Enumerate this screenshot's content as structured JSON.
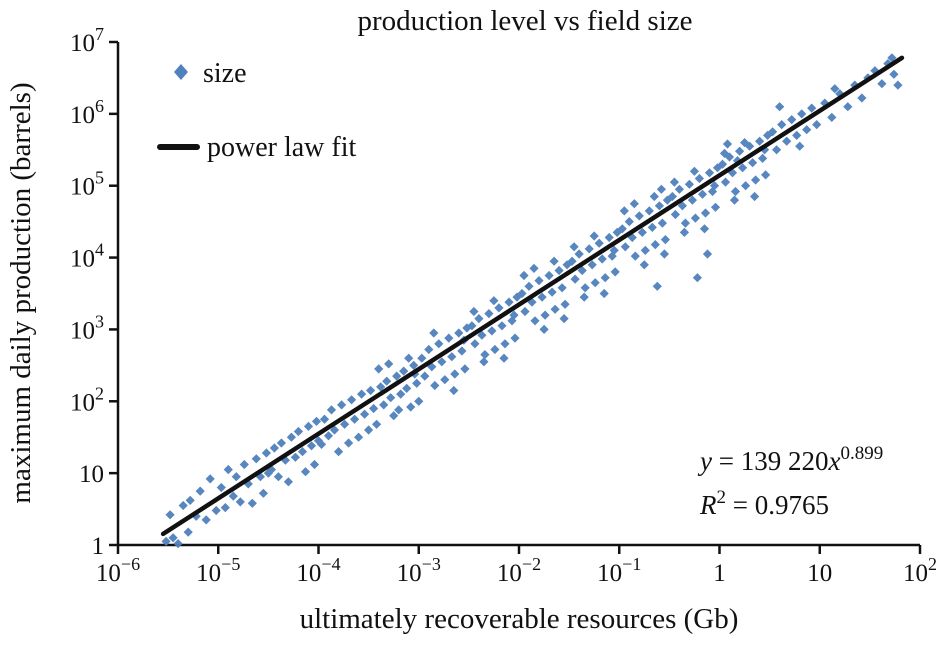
{
  "figure": {
    "title": "production level vs field size",
    "x_axis_label": "ultimately recoverable resources (Gb)",
    "y_axis_label": "maximum daily production (barrels)",
    "legend": [
      {
        "label": "size",
        "marker": "diamond",
        "color": "#4f81bd"
      },
      {
        "label": "power law fit",
        "marker": "line",
        "color": "#111111"
      }
    ],
    "annotation": {
      "equation": {
        "y": "y",
        "mid": " = 139 220",
        "x": "x",
        "exp": "0.899"
      },
      "r2": {
        "r": "R",
        "sup": "2",
        "rest": " = 0.9765"
      }
    }
  },
  "chart_data": {
    "type": "scatter",
    "title": "production level vs field size",
    "xlabel": "ultimately recoverable resources (Gb)",
    "ylabel": "maximum daily production (barrels)",
    "x_scale": "log",
    "y_scale": "log",
    "x_range_exp": [
      -6,
      2
    ],
    "y_range_exp": [
      0,
      7
    ],
    "grid": false,
    "legend_position": "top-left",
    "x_ticks": [
      {
        "v": -6,
        "base": "10",
        "sup": "−6"
      },
      {
        "v": -5,
        "base": "10",
        "sup": "−5"
      },
      {
        "v": -4,
        "base": "10",
        "sup": "−4"
      },
      {
        "v": -3,
        "base": "10",
        "sup": "−3"
      },
      {
        "v": -2,
        "base": "10",
        "sup": "−2"
      },
      {
        "v": -1,
        "base": "10",
        "sup": "−1"
      },
      {
        "v": 0,
        "base": "1",
        "sup": ""
      },
      {
        "v": 1,
        "base": "10",
        "sup": ""
      },
      {
        "v": 2,
        "base": "10",
        "sup": "2"
      }
    ],
    "y_ticks": [
      {
        "v": 0,
        "base": "1",
        "sup": ""
      },
      {
        "v": 1,
        "base": "10",
        "sup": ""
      },
      {
        "v": 2,
        "base": "10",
        "sup": "2"
      },
      {
        "v": 3,
        "base": "10",
        "sup": "3"
      },
      {
        "v": 4,
        "base": "10",
        "sup": "4"
      },
      {
        "v": 5,
        "base": "10",
        "sup": "5"
      },
      {
        "v": 6,
        "base": "10",
        "sup": "6"
      },
      {
        "v": 7,
        "base": "10",
        "sup": "7"
      }
    ],
    "fit": {
      "name": "power law fit",
      "model": "y = a * x^b",
      "coefficient": 139220,
      "exponent": 0.899,
      "r_squared": 0.9765,
      "color": "#111111",
      "x_log10_range": [
        -5.55,
        1.82
      ]
    },
    "series": [
      {
        "name": "size",
        "marker": "diamond",
        "color": "#4f81bd",
        "points_log10": [
          [
            -5.52,
            0.05
          ],
          [
            -5.48,
            0.42
          ],
          [
            -5.45,
            0.1
          ],
          [
            -5.4,
            0.02
          ],
          [
            -5.35,
            0.55
          ],
          [
            -5.3,
            0.18
          ],
          [
            -5.28,
            0.62
          ],
          [
            -5.22,
            0.4
          ],
          [
            -5.18,
            0.75
          ],
          [
            -5.12,
            0.35
          ],
          [
            -5.08,
            0.92
          ],
          [
            -5.02,
            0.48
          ],
          [
            -4.97,
            0.8
          ],
          [
            -4.93,
            0.52
          ],
          [
            -4.9,
            1.05
          ],
          [
            -4.85,
            0.68
          ],
          [
            -4.82,
            0.95
          ],
          [
            -4.78,
            0.6
          ],
          [
            -4.74,
            1.12
          ],
          [
            -4.7,
            0.85
          ],
          [
            -4.66,
            0.58
          ],
          [
            -4.62,
            1.2
          ],
          [
            -4.58,
            0.95
          ],
          [
            -4.55,
            0.72
          ],
          [
            -4.52,
            1.28
          ],
          [
            -4.5,
            1.0
          ],
          [
            -4.47,
            1.05
          ],
          [
            -4.44,
            1.35
          ],
          [
            -4.4,
            0.95
          ],
          [
            -4.37,
            1.42
          ],
          [
            -4.33,
            1.18
          ],
          [
            -4.3,
            0.88
          ],
          [
            -4.27,
            1.5
          ],
          [
            -4.23,
            1.22
          ],
          [
            -4.2,
            1.58
          ],
          [
            -4.16,
            1.3
          ],
          [
            -4.13,
            1.02
          ],
          [
            -4.1,
            1.65
          ],
          [
            -4.07,
            1.38
          ],
          [
            -4.04,
            1.12
          ],
          [
            -4.02,
            1.72
          ],
          [
            -4.0,
            1.45
          ],
          [
            -3.97,
            1.4
          ],
          [
            -3.94,
            1.75
          ],
          [
            -3.9,
            1.52
          ],
          [
            -3.87,
            1.88
          ],
          [
            -3.84,
            1.6
          ],
          [
            -3.8,
            1.3
          ],
          [
            -3.77,
            1.95
          ],
          [
            -3.74,
            1.68
          ],
          [
            -3.7,
            1.42
          ],
          [
            -3.67,
            2.02
          ],
          [
            -3.64,
            1.75
          ],
          [
            -3.6,
            1.5
          ],
          [
            -3.57,
            2.1
          ],
          [
            -3.54,
            1.82
          ],
          [
            -3.5,
            1.6
          ],
          [
            -3.48,
            2.15
          ],
          [
            -3.45,
            1.9
          ],
          [
            -3.42,
            1.68
          ],
          [
            -3.4,
            2.45
          ],
          [
            -3.38,
            2.2
          ],
          [
            -3.35,
            1.95
          ],
          [
            -3.32,
            2.28
          ],
          [
            -3.3,
            2.52
          ],
          [
            -3.28,
            2.05
          ],
          [
            -3.25,
            1.8
          ],
          [
            -3.22,
            2.35
          ],
          [
            -3.2,
            1.88
          ],
          [
            -3.18,
            2.1
          ],
          [
            -3.15,
            2.42
          ],
          [
            -3.12,
            2.18
          ],
          [
            -3.1,
            2.6
          ],
          [
            -3.08,
            1.92
          ],
          [
            -3.05,
            2.5
          ],
          [
            -3.04,
            2.38
          ],
          [
            -3.02,
            2.25
          ],
          [
            -3.0,
            2.0
          ],
          [
            -2.97,
            2.6
          ],
          [
            -2.94,
            2.35
          ],
          [
            -2.9,
            2.72
          ],
          [
            -2.87,
            2.48
          ],
          [
            -2.85,
            2.95
          ],
          [
            -2.84,
            2.22
          ],
          [
            -2.8,
            2.8
          ],
          [
            -2.77,
            2.55
          ],
          [
            -2.74,
            2.3
          ],
          [
            -2.7,
            2.88
          ],
          [
            -2.67,
            2.62
          ],
          [
            -2.65,
            2.15
          ],
          [
            -2.64,
            2.38
          ],
          [
            -2.6,
            2.95
          ],
          [
            -2.57,
            2.7
          ],
          [
            -2.55,
            2.85
          ],
          [
            -2.54,
            2.45
          ],
          [
            -2.52,
            3.02
          ],
          [
            -2.47,
            3.05
          ],
          [
            -2.45,
            3.25
          ],
          [
            -2.44,
            2.8
          ],
          [
            -2.4,
            3.15
          ],
          [
            -2.37,
            2.92
          ],
          [
            -2.35,
            2.55
          ],
          [
            -2.34,
            2.65
          ],
          [
            -2.3,
            3.22
          ],
          [
            -2.27,
            2.98
          ],
          [
            -2.25,
            3.4
          ],
          [
            -2.24,
            2.72
          ],
          [
            -2.2,
            3.3
          ],
          [
            -2.17,
            3.05
          ],
          [
            -2.15,
            2.6
          ],
          [
            -2.14,
            2.8
          ],
          [
            -2.1,
            3.38
          ],
          [
            -2.07,
            3.12
          ],
          [
            -2.05,
            3.2
          ],
          [
            -2.04,
            2.88
          ],
          [
            -2.02,
            3.45
          ],
          [
            -1.97,
            3.5
          ],
          [
            -1.95,
            3.75
          ],
          [
            -1.94,
            3.25
          ],
          [
            -1.9,
            3.6
          ],
          [
            -1.87,
            3.38
          ],
          [
            -1.85,
            3.85
          ],
          [
            -1.84,
            3.12
          ],
          [
            -1.8,
            3.68
          ],
          [
            -1.77,
            3.45
          ],
          [
            -1.75,
            3.0
          ],
          [
            -1.74,
            3.2
          ],
          [
            -1.7,
            3.75
          ],
          [
            -1.67,
            3.52
          ],
          [
            -1.65,
            3.95
          ],
          [
            -1.64,
            3.28
          ],
          [
            -1.6,
            3.82
          ],
          [
            -1.57,
            3.58
          ],
          [
            -1.55,
            3.15
          ],
          [
            -1.54,
            3.35
          ],
          [
            -1.52,
            3.9
          ],
          [
            -1.47,
            3.95
          ],
          [
            -1.45,
            4.15
          ],
          [
            -1.44,
            3.7
          ],
          [
            -1.4,
            4.05
          ],
          [
            -1.37,
            3.82
          ],
          [
            -1.35,
            3.45
          ],
          [
            -1.34,
            3.58
          ],
          [
            -1.3,
            4.12
          ],
          [
            -1.27,
            3.9
          ],
          [
            -1.25,
            4.3
          ],
          [
            -1.24,
            3.65
          ],
          [
            -1.2,
            4.2
          ],
          [
            -1.17,
            3.98
          ],
          [
            -1.15,
            3.5
          ],
          [
            -1.14,
            3.72
          ],
          [
            -1.1,
            4.28
          ],
          [
            -1.07,
            4.02
          ],
          [
            -1.05,
            4.1
          ],
          [
            -1.04,
            3.8
          ],
          [
            -1.02,
            4.35
          ],
          [
            -0.97,
            4.4
          ],
          [
            -0.95,
            4.65
          ],
          [
            -0.94,
            4.15
          ],
          [
            -0.9,
            4.5
          ],
          [
            -0.87,
            4.28
          ],
          [
            -0.85,
            4.75
          ],
          [
            -0.84,
            4.02
          ],
          [
            -0.8,
            4.58
          ],
          [
            -0.77,
            4.35
          ],
          [
            -0.75,
            3.9
          ],
          [
            -0.74,
            4.1
          ],
          [
            -0.7,
            4.65
          ],
          [
            -0.67,
            4.42
          ],
          [
            -0.65,
            4.85
          ],
          [
            -0.64,
            4.18
          ],
          [
            -0.62,
            3.6
          ],
          [
            -0.6,
            4.72
          ],
          [
            -0.58,
            4.95
          ],
          [
            -0.57,
            4.48
          ],
          [
            -0.55,
            4.05
          ],
          [
            -0.54,
            4.25
          ],
          [
            -0.52,
            4.8
          ],
          [
            -0.47,
            4.85
          ],
          [
            -0.45,
            5.05
          ],
          [
            -0.44,
            4.6
          ],
          [
            -0.4,
            4.95
          ],
          [
            -0.37,
            4.72
          ],
          [
            -0.35,
            4.35
          ],
          [
            -0.34,
            4.48
          ],
          [
            -0.3,
            5.02
          ],
          [
            -0.27,
            4.8
          ],
          [
            -0.25,
            5.2
          ],
          [
            -0.24,
            4.55
          ],
          [
            -0.22,
            3.72
          ],
          [
            -0.2,
            5.1
          ],
          [
            -0.17,
            4.88
          ],
          [
            -0.15,
            4.4
          ],
          [
            -0.14,
            4.62
          ],
          [
            -0.12,
            4.05
          ],
          [
            -0.1,
            5.18
          ],
          [
            -0.07,
            4.92
          ],
          [
            -0.05,
            5.0
          ],
          [
            -0.04,
            4.7
          ],
          [
            -0.02,
            5.25
          ],
          [
            0.03,
            5.3
          ],
          [
            0.05,
            5.45
          ],
          [
            0.06,
            5.05
          ],
          [
            0.08,
            5.58
          ],
          [
            0.1,
            5.4
          ],
          [
            0.13,
            5.18
          ],
          [
            0.15,
            4.8
          ],
          [
            0.16,
            4.92
          ],
          [
            0.18,
            5.35
          ],
          [
            0.2,
            5.48
          ],
          [
            0.23,
            5.25
          ],
          [
            0.25,
            5.6
          ],
          [
            0.26,
            5.0
          ],
          [
            0.3,
            5.55
          ],
          [
            0.33,
            5.32
          ],
          [
            0.35,
            4.85
          ],
          [
            0.36,
            5.08
          ],
          [
            0.4,
            5.62
          ],
          [
            0.43,
            5.38
          ],
          [
            0.45,
            5.5
          ],
          [
            0.46,
            5.15
          ],
          [
            0.48,
            5.7
          ],
          [
            0.53,
            5.75
          ],
          [
            0.57,
            5.5
          ],
          [
            0.6,
            6.1
          ],
          [
            0.62,
            5.85
          ],
          [
            0.67,
            5.62
          ],
          [
            0.72,
            5.92
          ],
          [
            0.77,
            5.7
          ],
          [
            0.8,
            5.55
          ],
          [
            0.82,
            6.0
          ],
          [
            0.87,
            5.78
          ],
          [
            0.92,
            6.08
          ],
          [
            0.97,
            5.85
          ],
          [
            1.05,
            6.15
          ],
          [
            1.12,
            5.95
          ],
          [
            1.15,
            6.35
          ],
          [
            1.2,
            6.28
          ],
          [
            1.28,
            6.1
          ],
          [
            1.35,
            6.4
          ],
          [
            1.42,
            6.22
          ],
          [
            1.48,
            6.5
          ],
          [
            1.55,
            6.6
          ],
          [
            1.62,
            6.42
          ],
          [
            1.68,
            6.7
          ],
          [
            1.72,
            6.78
          ],
          [
            1.74,
            6.55
          ],
          [
            1.78,
            6.4
          ]
        ]
      }
    ]
  }
}
